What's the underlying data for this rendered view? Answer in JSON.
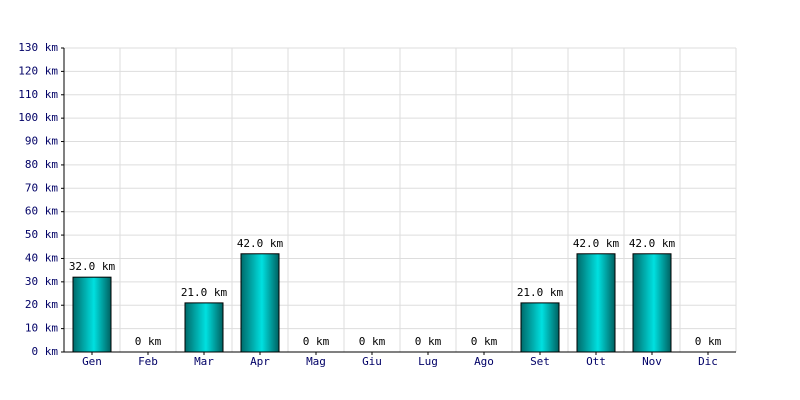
{
  "chart_data": {
    "type": "bar",
    "categories": [
      "Gen",
      "Feb",
      "Mar",
      "Apr",
      "Mag",
      "Giu",
      "Lug",
      "Ago",
      "Set",
      "Ott",
      "Nov",
      "Dic"
    ],
    "values": [
      32,
      0,
      21,
      42,
      0,
      0,
      0,
      0,
      21,
      42,
      42,
      0
    ],
    "value_labels": [
      "32.0 km",
      "0 km",
      "21.0 km",
      "42.0 km",
      "0 km",
      "0 km",
      "0 km",
      "0 km",
      "21.0 km",
      "42.0 km",
      "42.0 km",
      "0 km"
    ],
    "color": "#00e0e0",
    "ylim": [
      0,
      130
    ],
    "yticks": [
      {
        "value": 0,
        "label": "0 km"
      },
      {
        "value": 10,
        "label": "10 km"
      },
      {
        "value": 20,
        "label": "20 km"
      },
      {
        "value": 30,
        "label": "30 km"
      },
      {
        "value": 40,
        "label": "40 km"
      },
      {
        "value": 50,
        "label": "50 km"
      },
      {
        "value": 60,
        "label": "60 km"
      },
      {
        "value": 70,
        "label": "70 km"
      },
      {
        "value": 80,
        "label": "80 km"
      },
      {
        "value": 90,
        "label": "90 km"
      },
      {
        "value": 100,
        "label": "100 km"
      },
      {
        "value": 110,
        "label": "110 km"
      },
      {
        "value": 120,
        "label": "120 km"
      },
      {
        "value": 130,
        "label": "130 km"
      }
    ],
    "grid": true
  }
}
